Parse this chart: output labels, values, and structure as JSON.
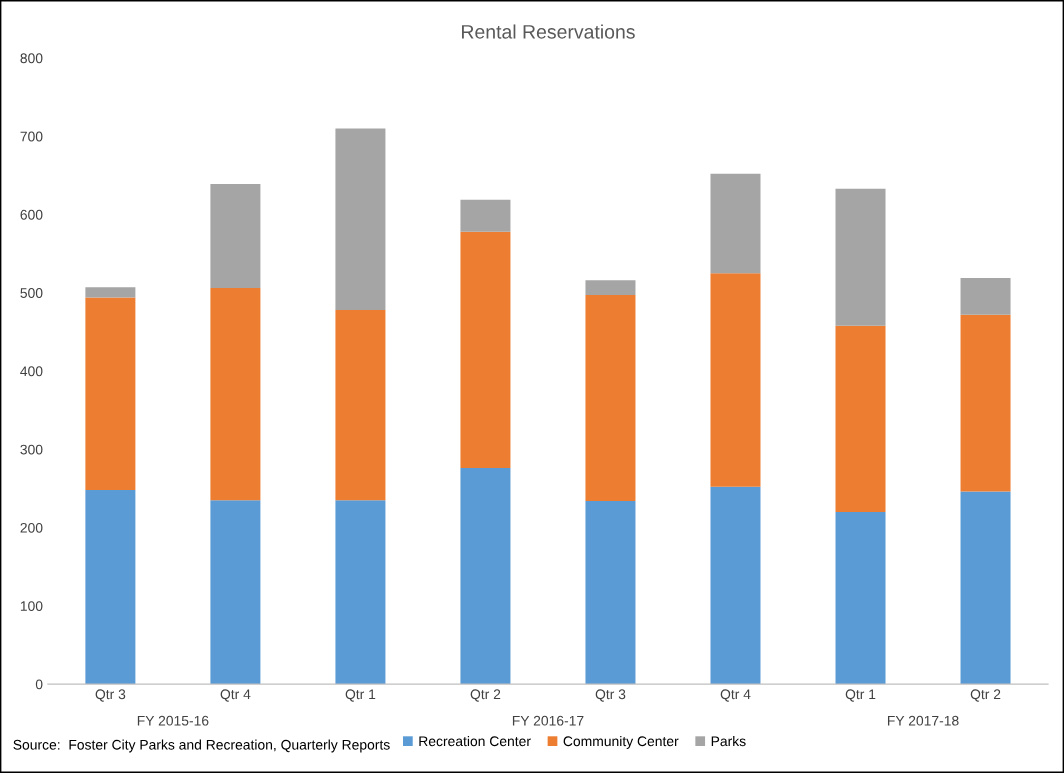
{
  "chart_data": {
    "type": "bar",
    "stacked": true,
    "title": "Rental Reservations",
    "categories": [
      "Qtr 3",
      "Qtr 4",
      "Qtr 1",
      "Qtr 2",
      "Qtr 3",
      "Qtr 4",
      "Qtr 1",
      "Qtr 2"
    ],
    "series": [
      {
        "name": "Recreation Center",
        "color": "#5b9bd5",
        "values": [
          248,
          235,
          235,
          276,
          234,
          252,
          220,
          246
        ]
      },
      {
        "name": "Community Center",
        "color": "#ed7d31",
        "values": [
          246,
          271,
          243,
          302,
          263,
          273,
          238,
          226
        ]
      },
      {
        "name": "Parks",
        "color": "#a5a5a5",
        "values": [
          13,
          133,
          232,
          41,
          19,
          127,
          175,
          47
        ]
      }
    ],
    "ylim": [
      0,
      800
    ],
    "yticks": [
      0,
      100,
      200,
      300,
      400,
      500,
      600,
      700,
      800
    ],
    "grid": false,
    "legend": "bottom",
    "annotations": [
      "FY 2015-16",
      "FY 2016-17",
      "FY 2017-18",
      "Source:  Foster City Parks and Recreation, Quarterly Reports"
    ]
  }
}
